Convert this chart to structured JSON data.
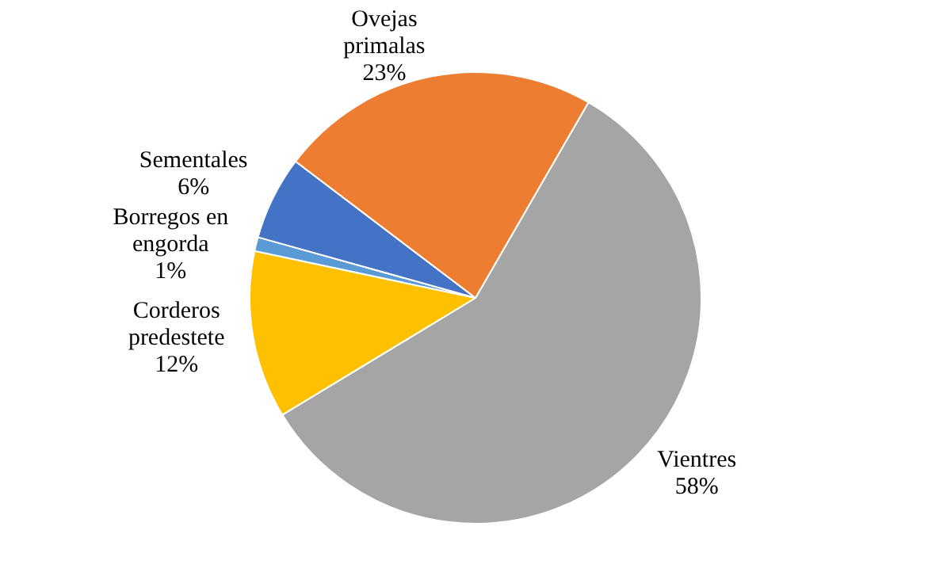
{
  "chart_data": {
    "type": "pie",
    "categories": [
      "Vientres",
      "Corderos predestete",
      "Borregos en engorda",
      "Sementales",
      "Ovejas primalas"
    ],
    "values": [
      58,
      12,
      1,
      6,
      23
    ],
    "colors": [
      "#a5a5a5",
      "#ffc000",
      "#5b9bd5",
      "#4472c4",
      "#ed7d31"
    ],
    "value_labels": [
      "58%",
      "12%",
      "1%",
      "6%",
      "23%"
    ],
    "legend": false
  }
}
